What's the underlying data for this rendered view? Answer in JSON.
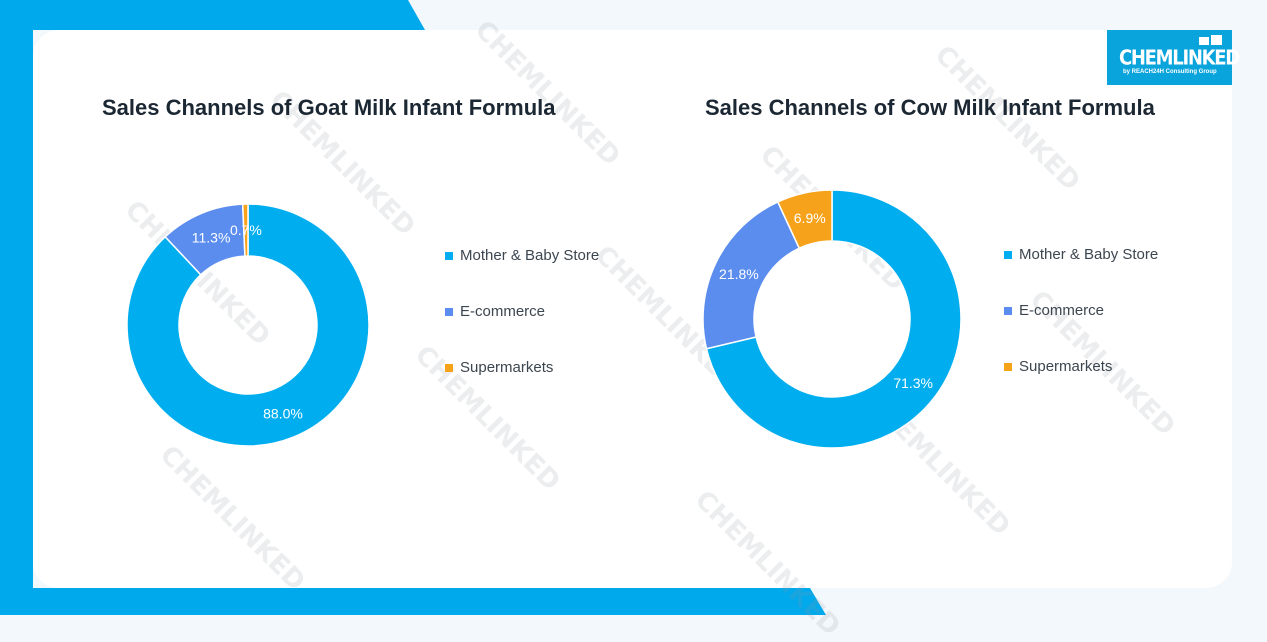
{
  "brand": {
    "name": "CHEMLINKED",
    "tagline": "by REACH24H Consulting Group",
    "color": "#0aa4dc"
  },
  "colors": {
    "mother_baby": "#00aeef",
    "ecommerce": "#5b8def",
    "supermarkets": "#f7a21b",
    "background_accent": "#00a8ec"
  },
  "chart_data": [
    {
      "type": "pie",
      "title": "Sales Channels of Goat Milk Infant Formula",
      "labels": [
        "Mother & Baby Store",
        "E-commerce",
        "Supermarkets"
      ],
      "values": [
        88.0,
        11.3,
        0.7
      ],
      "data_labels": [
        "88.0%",
        "11.3%",
        "0.7%"
      ],
      "colors": [
        "#00aeef",
        "#5b8def",
        "#f7a21b"
      ],
      "donut": true,
      "legend": "right"
    },
    {
      "type": "pie",
      "title": "Sales Channels of Cow Milk Infant Formula",
      "labels": [
        "Mother & Baby Store",
        "E-commerce",
        "Supermarkets"
      ],
      "values": [
        71.3,
        21.8,
        6.9
      ],
      "data_labels": [
        "71.3%",
        "21.8%",
        "6.9%"
      ],
      "colors": [
        "#00aeef",
        "#5b8def",
        "#f7a21b"
      ],
      "donut": true,
      "legend": "right"
    }
  ]
}
